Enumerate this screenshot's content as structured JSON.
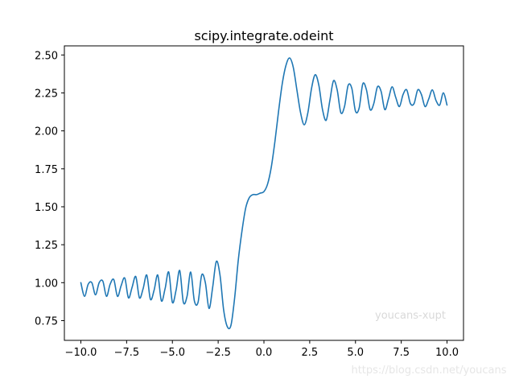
{
  "chart_data": {
    "type": "line",
    "title": "scipy.integrate.odeint",
    "xlabel": "",
    "ylabel": "",
    "xlim": [
      -10.9,
      10.9
    ],
    "ylim": [
      0.62,
      2.56
    ],
    "grid": false,
    "x_ticks": [
      -10.0,
      -7.5,
      -5.0,
      -2.5,
      0.0,
      2.5,
      5.0,
      7.5,
      10.0
    ],
    "x_tick_labels": [
      "−10.0",
      "−7.5",
      "−5.0",
      "−2.5",
      "0.0",
      "2.5",
      "5.0",
      "7.5",
      "10.0"
    ],
    "y_ticks": [
      0.75,
      1.0,
      1.25,
      1.5,
      1.75,
      2.0,
      2.25,
      2.5
    ],
    "y_tick_labels": [
      "0.75",
      "1.00",
      "1.25",
      "1.50",
      "1.75",
      "2.00",
      "2.25",
      "2.50"
    ],
    "series": [
      {
        "color": "#1f77b4",
        "x": [
          -10.0,
          -9.8,
          -9.6,
          -9.4,
          -9.2,
          -9.0,
          -8.8,
          -8.6,
          -8.4,
          -8.2,
          -8.0,
          -7.8,
          -7.6,
          -7.4,
          -7.2,
          -7.0,
          -6.8,
          -6.6,
          -6.4,
          -6.2,
          -6.0,
          -5.8,
          -5.6,
          -5.4,
          -5.2,
          -5.0,
          -4.8,
          -4.6,
          -4.4,
          -4.2,
          -4.0,
          -3.8,
          -3.6,
          -3.4,
          -3.2,
          -3.0,
          -2.8,
          -2.6,
          -2.4,
          -2.2,
          -2.0,
          -1.8,
          -1.6,
          -1.4,
          -1.2,
          -1.0,
          -0.8,
          -0.6,
          -0.4,
          -0.2,
          0.0,
          0.2,
          0.4,
          0.6,
          0.8,
          1.0,
          1.2,
          1.4,
          1.6,
          1.8,
          2.0,
          2.2,
          2.4,
          2.6,
          2.8,
          3.0,
          3.2,
          3.4,
          3.6,
          3.8,
          4.0,
          4.2,
          4.4,
          4.6,
          4.8,
          5.0,
          5.2,
          5.4,
          5.6,
          5.8,
          6.0,
          6.2,
          6.4,
          6.6,
          6.8,
          7.0,
          7.2,
          7.4,
          7.6,
          7.8,
          8.0,
          8.2,
          8.4,
          8.6,
          8.8,
          9.0,
          9.2,
          9.4,
          9.6,
          9.8,
          10.0
        ],
        "y": [
          1.0,
          0.91,
          0.99,
          1.0,
          0.92,
          1.0,
          1.01,
          0.91,
          0.99,
          1.02,
          0.91,
          0.98,
          1.03,
          0.9,
          0.97,
          1.04,
          0.9,
          0.96,
          1.05,
          0.89,
          0.95,
          1.05,
          0.88,
          0.96,
          1.07,
          0.87,
          0.95,
          1.08,
          0.87,
          0.91,
          1.07,
          0.88,
          0.87,
          1.05,
          1.0,
          0.83,
          0.97,
          1.14,
          1.05,
          0.82,
          0.71,
          0.72,
          0.9,
          1.15,
          1.34,
          1.49,
          1.56,
          1.58,
          1.58,
          1.59,
          1.6,
          1.65,
          1.76,
          1.93,
          2.13,
          2.31,
          2.43,
          2.48,
          2.42,
          2.27,
          2.12,
          2.04,
          2.12,
          2.28,
          2.37,
          2.3,
          2.14,
          2.07,
          2.2,
          2.33,
          2.27,
          2.12,
          2.16,
          2.3,
          2.28,
          2.13,
          2.15,
          2.31,
          2.27,
          2.14,
          2.18,
          2.29,
          2.26,
          2.14,
          2.21,
          2.29,
          2.22,
          2.16,
          2.24,
          2.27,
          2.18,
          2.18,
          2.27,
          2.24,
          2.16,
          2.21,
          2.27,
          2.2,
          2.17,
          2.25,
          2.17
        ]
      }
    ],
    "annotation": "youcans-xupt"
  },
  "page_watermark": "https://blog.csdn.net/youcans",
  "colors": {
    "line": "#1f77b4",
    "axes": "#000000",
    "annotation": "#d9d9d9",
    "watermark": "#e6e6e6"
  }
}
